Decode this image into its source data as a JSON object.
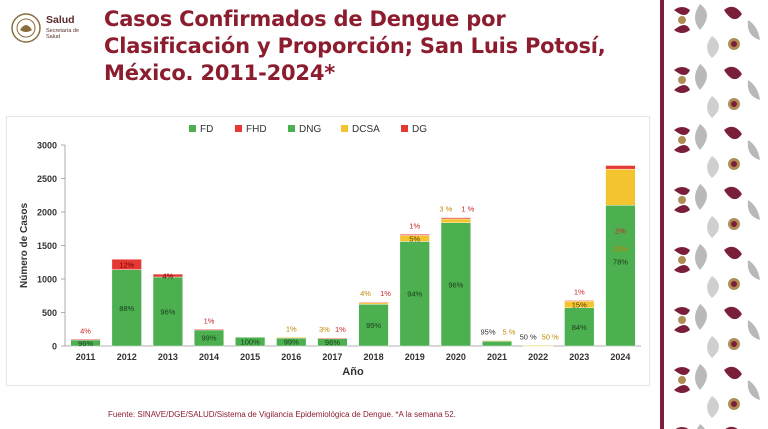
{
  "header": {
    "logo_title": "Salud",
    "logo_subtitle": "Secretaría de Salud",
    "title": "Casos Confirmados de Dengue por Clasificación y Proporción; San Luis Potosí, México. 2011-2024*"
  },
  "footer": {
    "source": "Fuente: SINAVE/DGE/SALUD/Sistema de Vigilancia Epidemiológica de Dengue. *A la semana 52."
  },
  "colors": {
    "FD": "#4caf50",
    "FHD": "#e53935",
    "DNG": "#4caf50",
    "DCSA": "#f4c430",
    "DG": "#e53935",
    "title": "#8c1d2f"
  },
  "chart_data": {
    "type": "bar",
    "stacked": true,
    "xlabel": "Año",
    "ylabel": "Número de Casos",
    "ylim": [
      0,
      3000
    ],
    "yticks": [
      0,
      500,
      1000,
      1500,
      2000,
      2500,
      3000
    ],
    "legend_position": "top",
    "grid": false,
    "categories": [
      "2011",
      "2012",
      "2013",
      "2014",
      "2015",
      "2016",
      "2017",
      "2018",
      "2019",
      "2020",
      "2021",
      "2022",
      "2023",
      "2024"
    ],
    "series": [
      {
        "name": "FD",
        "values": [
          96,
          1140,
          1030,
          0,
          0,
          0,
          0,
          0,
          0,
          0,
          0,
          0,
          0,
          0
        ]
      },
      {
        "name": "FHD",
        "values": [
          4,
          155,
          43,
          0,
          0,
          0,
          0,
          0,
          0,
          0,
          0,
          0,
          0,
          0
        ]
      },
      {
        "name": "DNG",
        "values": [
          0,
          0,
          0,
          247,
          130,
          128,
          115,
          622,
          1560,
          1840,
          78,
          4,
          570,
          2100
        ]
      },
      {
        "name": "DCSA",
        "values": [
          0,
          0,
          0,
          0,
          0,
          1,
          4,
          26,
          90,
          57,
          4,
          4,
          102,
          540
        ]
      },
      {
        "name": "DG",
        "values": [
          0,
          0,
          0,
          3,
          0,
          0,
          1,
          7,
          17,
          19,
          0,
          0,
          7,
          54
        ]
      }
    ],
    "bar_labels": [
      {
        "category": "2011",
        "text": "96%",
        "series": "FD"
      },
      {
        "category": "2011",
        "text": "4%",
        "series": "FHD",
        "above": true
      },
      {
        "category": "2012",
        "text": "88%",
        "series": "FD"
      },
      {
        "category": "2012",
        "text": "12%",
        "series": "FHD"
      },
      {
        "category": "2013",
        "text": "96%",
        "series": "FD"
      },
      {
        "category": "2013",
        "text": "4%",
        "series": "FHD"
      },
      {
        "category": "2014",
        "text": "99%",
        "series": "DNG"
      },
      {
        "category": "2014",
        "text": "1%",
        "series": "DG",
        "above": true
      },
      {
        "category": "2015",
        "text": "100%",
        "series": "DNG"
      },
      {
        "category": "2016",
        "text": "99%",
        "series": "DNG"
      },
      {
        "category": "2016",
        "text": "1%",
        "series": "DCSA",
        "above": true
      },
      {
        "category": "2017",
        "text": "96%",
        "series": "DNG"
      },
      {
        "category": "2017",
        "text": "3%",
        "series": "DCSA",
        "above": true,
        "offset": -8
      },
      {
        "category": "2017",
        "text": "1%",
        "series": "DG",
        "above": true,
        "offset": 8
      },
      {
        "category": "2018",
        "text": "95%",
        "series": "DNG"
      },
      {
        "category": "2018",
        "text": "4%",
        "series": "DCSA",
        "above": true,
        "offset": -8
      },
      {
        "category": "2018",
        "text": "1%",
        "series": "DG",
        "above": true,
        "offset": 12
      },
      {
        "category": "2019",
        "text": "94%",
        "series": "DNG"
      },
      {
        "category": "2019",
        "text": "5%",
        "series": "DCSA"
      },
      {
        "category": "2019",
        "text": "1%",
        "series": "DG",
        "above": true
      },
      {
        "category": "2020",
        "text": "96%",
        "series": "DNG"
      },
      {
        "category": "2020",
        "text": "3 %",
        "series": "DCSA",
        "above": true,
        "offset": -10
      },
      {
        "category": "2020",
        "text": "1 %",
        "series": "DG",
        "above": true,
        "offset": 12
      },
      {
        "category": "2021",
        "text": "95%",
        "series": "DNG",
        "above": true,
        "offset": -9
      },
      {
        "category": "2021",
        "text": "5 %",
        "series": "DCSA",
        "above": true,
        "offset": 12
      },
      {
        "category": "2022",
        "text": "50 %",
        "series": "DNG",
        "above": true,
        "offset": -10
      },
      {
        "category": "2022",
        "text": "50 %",
        "series": "DCSA",
        "above": true,
        "offset": 12
      },
      {
        "category": "2023",
        "text": "84%",
        "series": "DNG"
      },
      {
        "category": "2023",
        "text": "15%",
        "series": "DCSA"
      },
      {
        "category": "2023",
        "text": "1%",
        "series": "DG",
        "above": true
      },
      {
        "category": "2024",
        "text": "78%",
        "series": "DNG",
        "mid": 0.6
      },
      {
        "category": "2024",
        "text": "20%",
        "series": "DCSA",
        "inDNG": true
      },
      {
        "category": "2024",
        "text": "2%",
        "series": "DG",
        "inDNG": true
      }
    ]
  }
}
